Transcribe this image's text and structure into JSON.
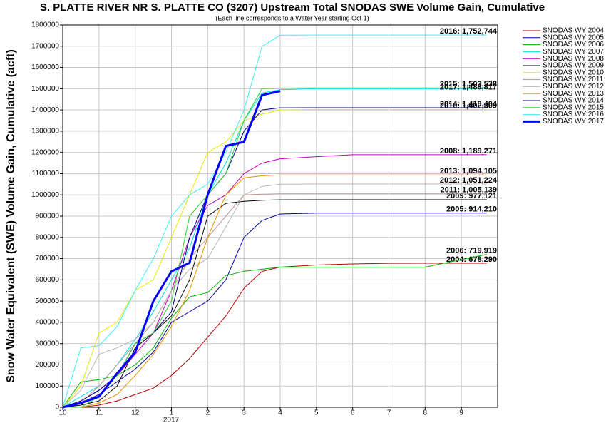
{
  "chart_data": {
    "type": "line",
    "title": "S. PLATTE RIVER NR S. PLATTE CO (3207) Upstream Total SNODAS SWE Volume Gain, Cumulative",
    "subtitle": "(Each line corresponds to a Water Year starting Oct 1)",
    "y_label": "Snow Water Equivalent (SWE) Volume Gain, Cumulative (acft)",
    "x_year_label": "2017",
    "xlim": [
      0,
      12
    ],
    "xticks": [
      {
        "value": 0,
        "label": "10"
      },
      {
        "value": 1,
        "label": "11"
      },
      {
        "value": 2,
        "label": "12"
      },
      {
        "value": 3,
        "label": "1"
      },
      {
        "value": 4,
        "label": "2"
      },
      {
        "value": 5,
        "label": "3"
      },
      {
        "value": 6,
        "label": "4"
      },
      {
        "value": 7,
        "label": "5"
      },
      {
        "value": 8,
        "label": "6"
      },
      {
        "value": 9,
        "label": "7"
      },
      {
        "value": 10,
        "label": "8"
      },
      {
        "value": 11,
        "label": "9"
      }
    ],
    "ylim": [
      0,
      1800000
    ],
    "yticks": [
      0,
      100000,
      200000,
      300000,
      400000,
      500000,
      600000,
      700000,
      800000,
      900000,
      1000000,
      1100000,
      1200000,
      1300000,
      1400000,
      1500000,
      1600000,
      1700000,
      1800000
    ],
    "grid": true,
    "legend": "right",
    "x": [
      0,
      0.5,
      1,
      1.5,
      2,
      2.5,
      3,
      3.5,
      4,
      4.5,
      5,
      5.5,
      6,
      7,
      8,
      9,
      10,
      11.7
    ],
    "series": [
      {
        "name": "SNODAS WY 2004",
        "color": "#c00000",
        "end_label": "2004: 678,290",
        "values": [
          0,
          0,
          10000,
          30000,
          60000,
          90000,
          150000,
          230000,
          330000,
          430000,
          560000,
          640000,
          660000,
          670000,
          675000,
          678000,
          678290,
          678290
        ]
      },
      {
        "name": "SNODAS WY 2005",
        "color": "#0000a0",
        "end_label": "2005: 914,210",
        "values": [
          0,
          20000,
          60000,
          120000,
          180000,
          260000,
          400000,
          450000,
          500000,
          600000,
          800000,
          880000,
          910000,
          914000,
          914210,
          914210,
          914210,
          914210
        ]
      },
      {
        "name": "SNODAS WY 2006",
        "color": "#00b000",
        "end_label": "2006: 719,919",
        "values": [
          0,
          120000,
          130000,
          150000,
          200000,
          280000,
          420000,
          520000,
          540000,
          620000,
          640000,
          650000,
          660000,
          660000,
          660000,
          660000,
          660000,
          719919
        ]
      },
      {
        "name": "SNODAS WY 2007",
        "color": "#00e0e0",
        "values": [
          0,
          50000,
          100000,
          200000,
          320000,
          450000,
          600000,
          750000,
          1000000,
          1150000,
          1350000,
          1480000,
          1495000,
          1500000,
          1500000,
          1500000,
          1500000,
          1500000
        ]
      },
      {
        "name": "SNODAS WY 2008",
        "color": "#c000c0",
        "end_label": "2008: 1,189,271",
        "values": [
          0,
          30000,
          80000,
          150000,
          250000,
          350000,
          550000,
          800000,
          950000,
          1000000,
          1100000,
          1150000,
          1170000,
          1180000,
          1189000,
          1189271,
          1189271,
          1189271
        ]
      },
      {
        "name": "SNODAS WY 2009",
        "color": "#000000",
        "end_label": "2009: 977,121",
        "values": [
          0,
          10000,
          30000,
          100000,
          280000,
          350000,
          430000,
          600000,
          900000,
          960000,
          970000,
          975000,
          977000,
          977121,
          977121,
          977121,
          977121,
          977121
        ]
      },
      {
        "name": "SNODAS WY 2010",
        "color": "#e8e800",
        "end_label": "2010: 1,402,309",
        "values": [
          0,
          100000,
          350000,
          400000,
          550000,
          600000,
          800000,
          1000000,
          1200000,
          1250000,
          1350000,
          1380000,
          1400000,
          1402309,
          1402309,
          1402309,
          1402309,
          1402309
        ]
      },
      {
        "name": "SNODAS WY 2011",
        "color": "#c09090",
        "end_label": "2011: 1,005,139",
        "values": [
          0,
          20000,
          100000,
          200000,
          300000,
          400000,
          550000,
          700000,
          800000,
          900000,
          1000000,
          1003000,
          1005000,
          1005139,
          1005139,
          1005139,
          1005139,
          1005139
        ]
      },
      {
        "name": "SNODAS WY 2012",
        "color": "#b8b8b8",
        "end_label": "2012: 1,051,224",
        "values": [
          0,
          80000,
          250000,
          280000,
          320000,
          400000,
          550000,
          650000,
          700000,
          850000,
          1000000,
          1040000,
          1050000,
          1051224,
          1051224,
          1051224,
          1051224,
          1051224
        ]
      },
      {
        "name": "SNODAS WY 2013",
        "color": "#e89000",
        "end_label": "2013: 1,094,105",
        "values": [
          0,
          0,
          20000,
          60000,
          150000,
          250000,
          380000,
          550000,
          800000,
          1000000,
          1080000,
          1090000,
          1094000,
          1094105,
          1094105,
          1094105,
          1094105,
          1094105
        ]
      },
      {
        "name": "SNODAS WY 2014",
        "color": "#000080",
        "end_label": "2014: 1,410,404",
        "values": [
          0,
          30000,
          80000,
          150000,
          300000,
          350000,
          450000,
          800000,
          1000000,
          1100000,
          1300000,
          1400000,
          1410000,
          1410404,
          1410404,
          1410404,
          1410404,
          1410404
        ]
      },
      {
        "name": "SNODAS WY 2015",
        "color": "#30d030",
        "end_label": "2015: 1,503,538",
        "values": [
          0,
          0,
          50000,
          150000,
          300000,
          350000,
          500000,
          900000,
          1000000,
          1100000,
          1350000,
          1500000,
          1503000,
          1503538,
          1503538,
          1503538,
          1503538,
          1503538
        ]
      },
      {
        "name": "SNODAS WY 2016",
        "color": "#40f0f0",
        "end_label": "2016: 1,752,744",
        "values": [
          0,
          280000,
          290000,
          380000,
          550000,
          700000,
          900000,
          1000000,
          1050000,
          1200000,
          1400000,
          1700000,
          1752000,
          1752744,
          1752744,
          1752744,
          1752744,
          1752744
        ]
      },
      {
        "name": "SNODAS WY 2017",
        "color": "#0000ff",
        "line_width": 3,
        "end_label": "2017: 1,488,817",
        "values": [
          0,
          20000,
          50000,
          160000,
          260000,
          500000,
          640000,
          680000,
          1000000,
          1230000,
          1250000,
          1470000,
          1488817,
          null,
          null,
          null,
          null,
          null
        ]
      }
    ]
  }
}
